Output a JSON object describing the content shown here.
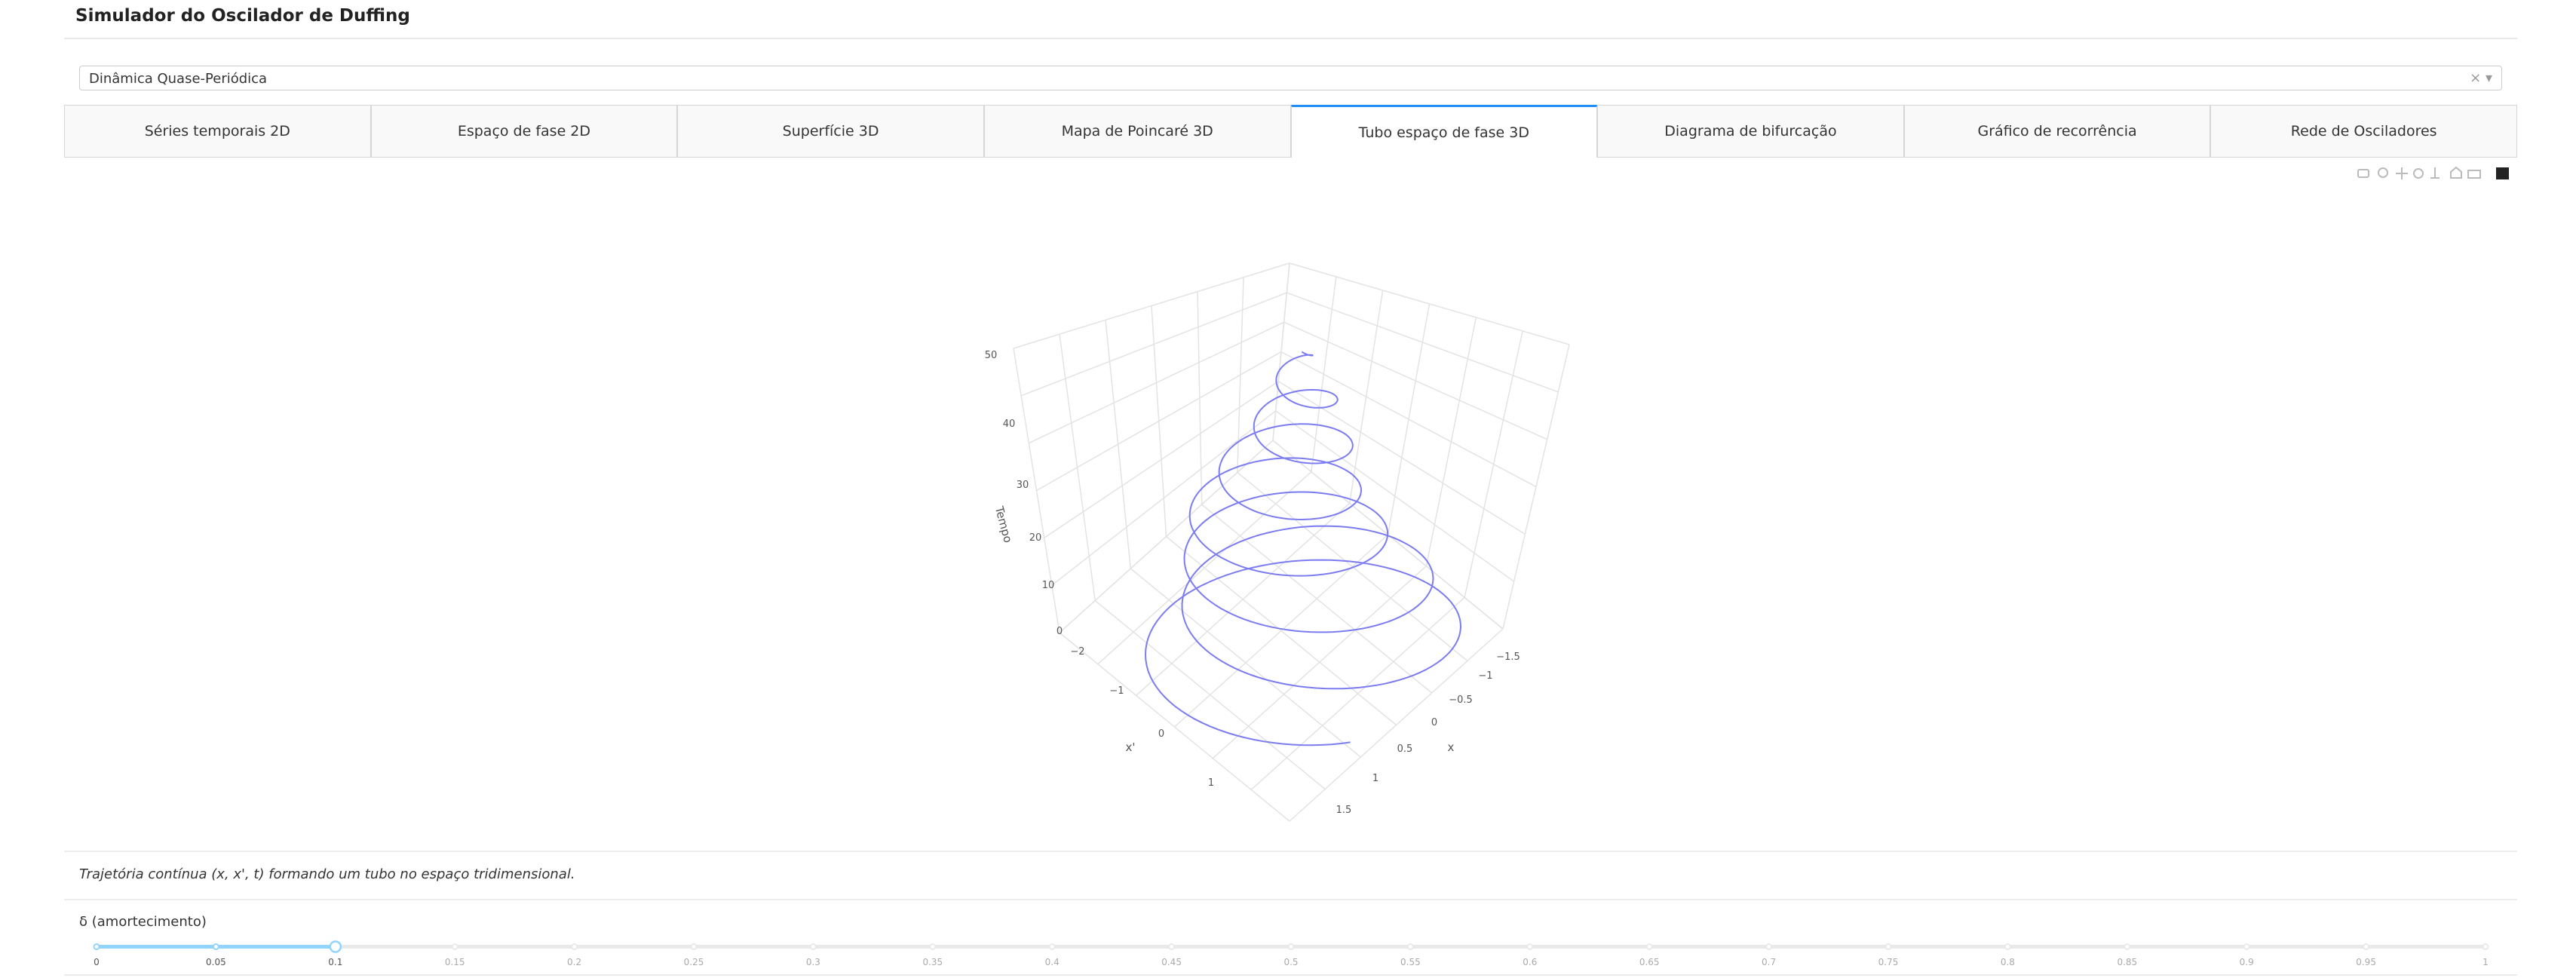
{
  "header": {
    "title": "Simulador do Oscilador de Duffing"
  },
  "dropdown": {
    "value": "Dinâmica Quase-Periódica"
  },
  "tabs": [
    "Séries temporais 2D",
    "Espaço de fase 2D",
    "Superfície 3D",
    "Mapa de Poincaré 3D",
    "Tubo espaço de fase 3D",
    "Diagrama de bifurcação",
    "Gráfico de recorrência",
    "Rede de Osciladores"
  ],
  "active_tab": 4,
  "plot": {
    "z_title": "Tempo",
    "z_ticks": [
      "0",
      "10",
      "20",
      "30",
      "40",
      "50"
    ],
    "y_title": "x'",
    "y_ticks": [
      "−2",
      "−1",
      "0",
      "1"
    ],
    "x_title": "x",
    "x_ticks": [
      "−1.5",
      "−1",
      "−0.5",
      "0",
      "0.5",
      "1",
      "1.5"
    ]
  },
  "caption": "Trajetória contínua (x, x', t) formando um tubo no espaço tridimensional.",
  "slider": {
    "label": "δ (amortecimento)",
    "value": 0.1,
    "marks": [
      0,
      0.05,
      0.1,
      0.15,
      0.2,
      0.25,
      0.3,
      0.35,
      0.4,
      0.45,
      0.5,
      0.55,
      0.6,
      0.65,
      0.7,
      0.75,
      0.8,
      0.85,
      0.9,
      0.95,
      1
    ]
  }
}
